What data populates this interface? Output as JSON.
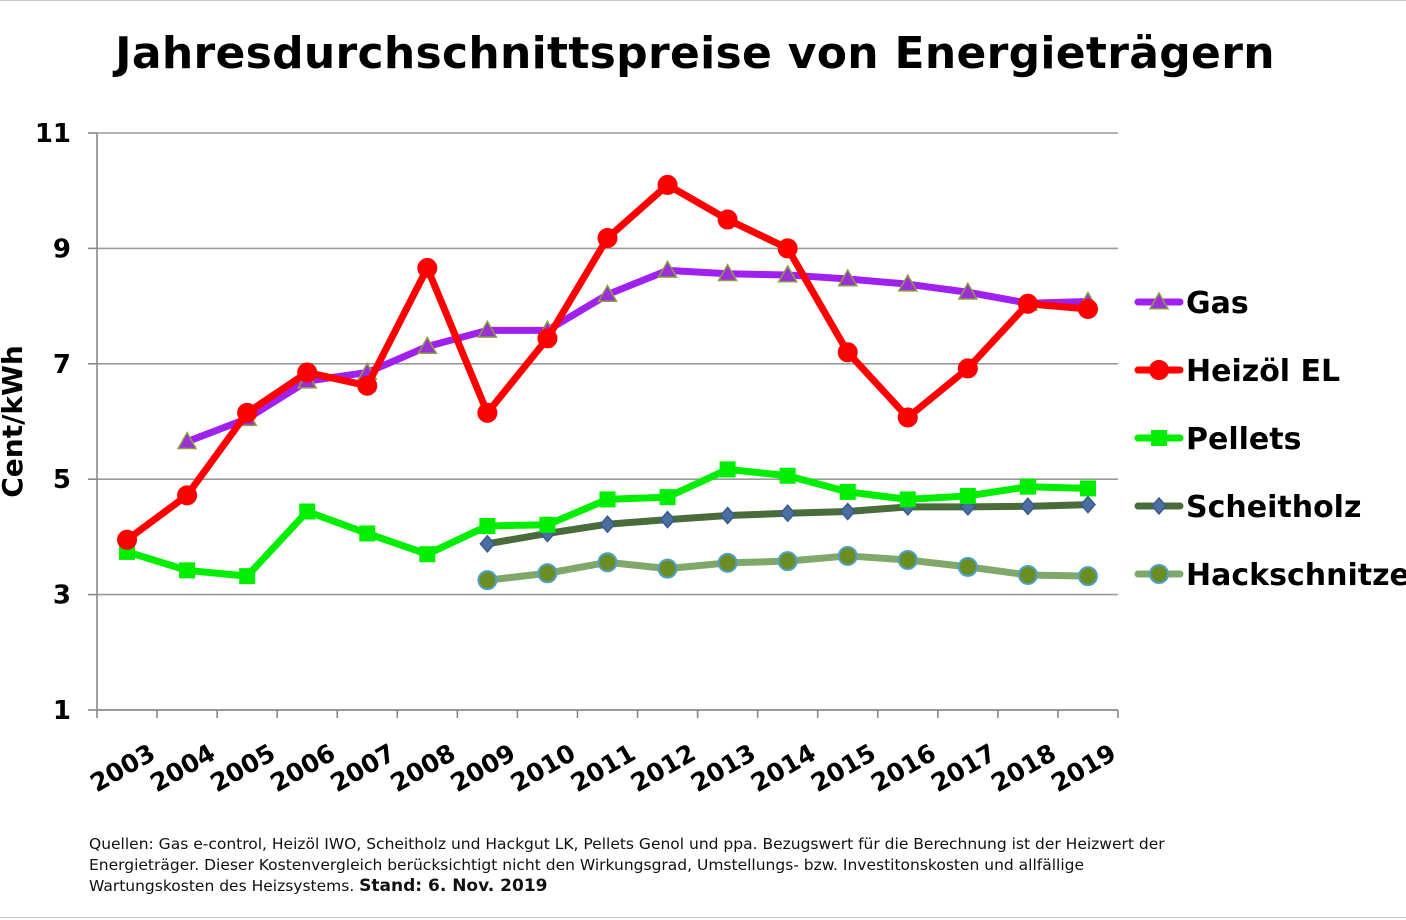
{
  "chart_data": {
    "type": "line",
    "title": "Jahresdurchschnittspreise von Energieträgern",
    "ylabel": "Cent/kWh",
    "xlabel": "",
    "ylim": [
      1,
      11
    ],
    "yticks": [
      "1",
      "3",
      "5",
      "7",
      "9",
      "11"
    ],
    "categories": [
      "2003",
      "2004",
      "2005",
      "2006",
      "2007",
      "2008",
      "2009",
      "2010",
      "2011",
      "2012",
      "2013",
      "2014",
      "2015",
      "2016",
      "2017",
      "2018",
      "2019"
    ],
    "grid": "horizontal",
    "legend_position": "right",
    "series": [
      {
        "name": "Gas",
        "color": "#a020f0",
        "marker": "triangle",
        "marker_fill": "#9b30d8",
        "marker_stroke": "#8aa040",
        "values": [
          null,
          5.65,
          6.05,
          6.7,
          6.85,
          7.3,
          7.58,
          7.58,
          8.2,
          8.62,
          8.56,
          8.54,
          8.47,
          8.38,
          8.24,
          8.05,
          8.08
        ]
      },
      {
        "name": "Heizöl EL",
        "color": "#ff0000",
        "marker": "circle",
        "marker_fill": "#ff0000",
        "marker_stroke": "#ff0000",
        "values": [
          3.95,
          4.72,
          6.15,
          6.85,
          6.62,
          8.66,
          6.15,
          7.44,
          9.18,
          10.1,
          9.5,
          9.0,
          7.2,
          6.07,
          6.92,
          8.04,
          7.95
        ]
      },
      {
        "name": "Pellets",
        "color": "#00ee00",
        "marker": "square",
        "marker_fill": "#00ee00",
        "marker_stroke": "#00ee00",
        "values": [
          3.74,
          3.42,
          3.32,
          4.44,
          4.06,
          3.7,
          4.19,
          4.21,
          4.65,
          4.69,
          5.17,
          5.06,
          4.78,
          4.65,
          4.71,
          4.87,
          4.84
        ]
      },
      {
        "name": "Scheitholz",
        "color": "#4a6b3a",
        "marker": "diamond",
        "marker_fill": "#4a6fa0",
        "marker_stroke": "#3a5a8a",
        "values": [
          null,
          null,
          null,
          null,
          null,
          null,
          3.88,
          4.06,
          4.22,
          4.3,
          4.37,
          4.41,
          4.44,
          4.52,
          4.52,
          4.53,
          4.56
        ]
      },
      {
        "name": "Hackschnitzel",
        "color": "#7fa86a",
        "marker": "circle",
        "marker_fill": "#6b8e23",
        "marker_stroke": "#4fa0c8",
        "values": [
          null,
          null,
          null,
          null,
          null,
          null,
          3.25,
          3.37,
          3.56,
          3.45,
          3.55,
          3.58,
          3.67,
          3.6,
          3.48,
          3.34,
          3.32
        ]
      }
    ]
  },
  "footnote": {
    "line1": "Quellen: Gas e-control, Heizöl IWO, Scheitholz und Hackgut LK, Pellets Genol und ppa. Bezugswert für die Berechnung ist der Heizwert der",
    "line2_a": "Energieträger",
    "line2_b": ". Dieser Kostenvergleich berücksichtigt nicht den Wirkungsgrad, Umstellungs- bzw. Investitonskosten und allfällige",
    "line3_a": "Wartungskosten des Heizsystems. ",
    "line3_b": "Stand: 6. Nov. 2019"
  }
}
